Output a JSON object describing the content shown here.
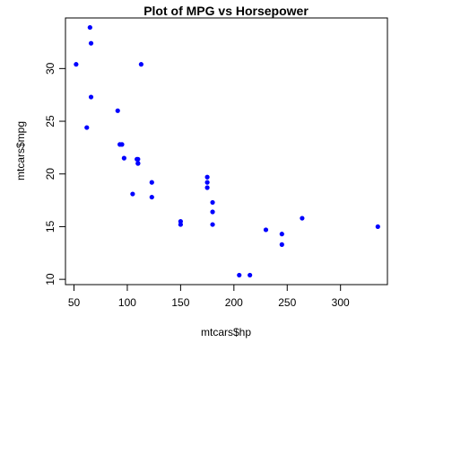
{
  "chart_data": {
    "type": "scatter",
    "title": "Plot of MPG vs Horsepower",
    "xlabel": "mtcars$hp",
    "ylabel": "mtcars$mpg",
    "xlim": [
      42,
      344
    ],
    "ylim": [
      9.5,
      34.8
    ],
    "x_ticks": [
      50,
      100,
      150,
      200,
      250,
      300
    ],
    "y_ticks": [
      10,
      15,
      20,
      25,
      30
    ],
    "point_color": "#0000ff",
    "grid": false,
    "points": [
      {
        "x": 110,
        "y": 21.0
      },
      {
        "x": 110,
        "y": 21.0
      },
      {
        "x": 93,
        "y": 22.8
      },
      {
        "x": 110,
        "y": 21.4
      },
      {
        "x": 175,
        "y": 18.7
      },
      {
        "x": 105,
        "y": 18.1
      },
      {
        "x": 245,
        "y": 14.3
      },
      {
        "x": 62,
        "y": 24.4
      },
      {
        "x": 95,
        "y": 22.8
      },
      {
        "x": 123,
        "y": 19.2
      },
      {
        "x": 123,
        "y": 17.8
      },
      {
        "x": 180,
        "y": 16.4
      },
      {
        "x": 180,
        "y": 17.3
      },
      {
        "x": 180,
        "y": 15.2
      },
      {
        "x": 205,
        "y": 10.4
      },
      {
        "x": 215,
        "y": 10.4
      },
      {
        "x": 230,
        "y": 14.7
      },
      {
        "x": 66,
        "y": 32.4
      },
      {
        "x": 52,
        "y": 30.4
      },
      {
        "x": 65,
        "y": 33.9
      },
      {
        "x": 97,
        "y": 21.5
      },
      {
        "x": 150,
        "y": 15.5
      },
      {
        "x": 150,
        "y": 15.2
      },
      {
        "x": 245,
        "y": 13.3
      },
      {
        "x": 175,
        "y": 19.2
      },
      {
        "x": 66,
        "y": 27.3
      },
      {
        "x": 91,
        "y": 26.0
      },
      {
        "x": 113,
        "y": 30.4
      },
      {
        "x": 264,
        "y": 15.8
      },
      {
        "x": 175,
        "y": 19.7
      },
      {
        "x": 335,
        "y": 15.0
      },
      {
        "x": 109,
        "y": 21.4
      }
    ]
  }
}
